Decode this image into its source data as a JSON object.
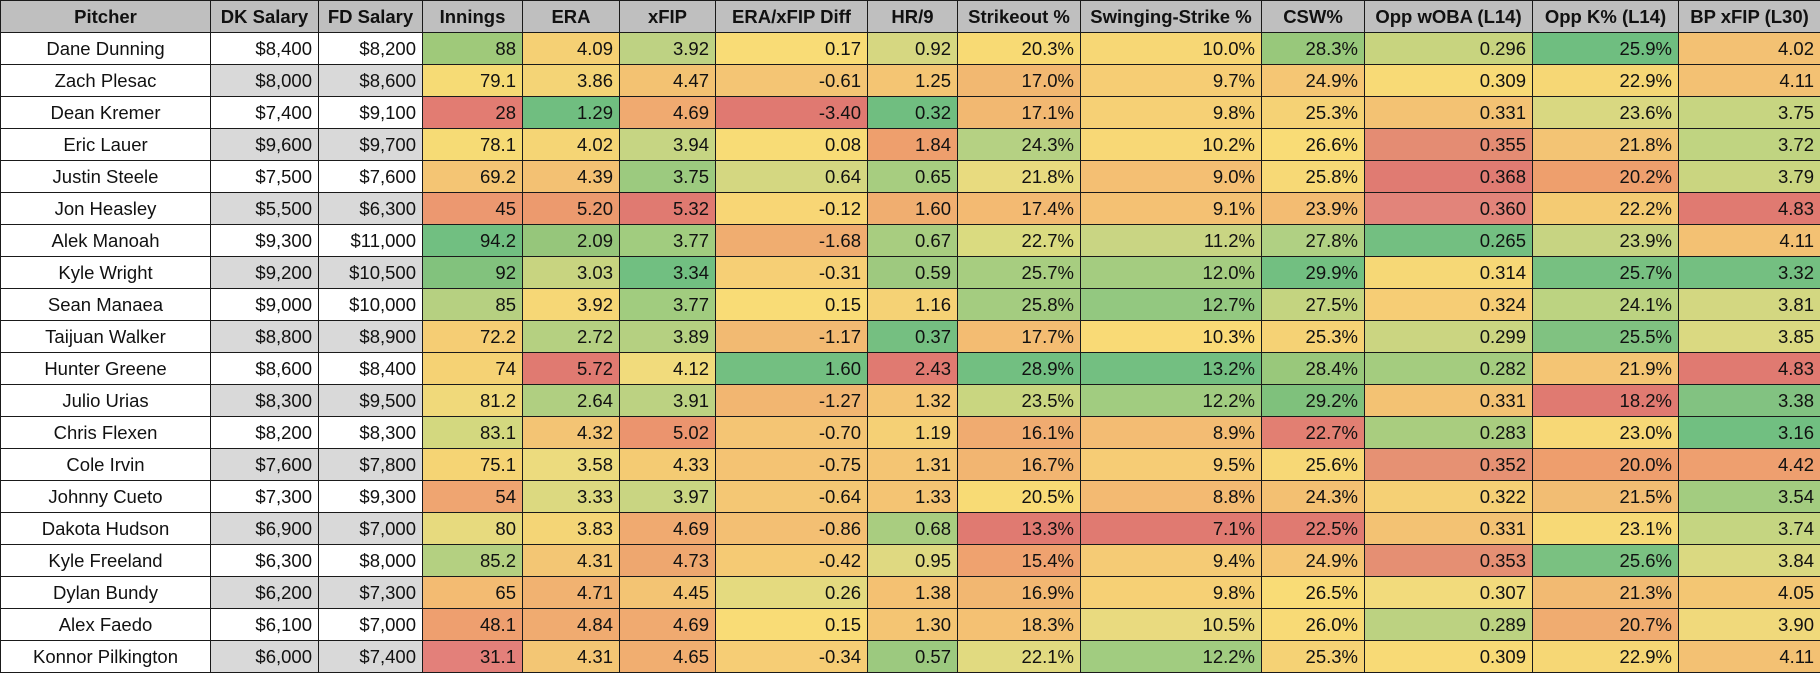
{
  "columns": [
    {
      "key": "pitcher",
      "label": "Pitcher",
      "width": 210
    },
    {
      "key": "dk",
      "label": "DK Salary",
      "width": 108
    },
    {
      "key": "fd",
      "label": "FD Salary",
      "width": 104
    },
    {
      "key": "innings",
      "label": "Innings",
      "width": 100
    },
    {
      "key": "era",
      "label": "ERA",
      "width": 97
    },
    {
      "key": "xfip",
      "label": "xFIP",
      "width": 96
    },
    {
      "key": "diff",
      "label": "ERA/xFIP Diff",
      "width": 152
    },
    {
      "key": "hr9",
      "label": "HR/9",
      "width": 90
    },
    {
      "key": "kpct",
      "label": "Strikeout %",
      "width": 123
    },
    {
      "key": "swstr",
      "label": "Swinging-Strike %",
      "width": 181
    },
    {
      "key": "csw",
      "label": "CSW%",
      "width": 103
    },
    {
      "key": "woba",
      "label": "Opp wOBA (L14)",
      "width": 168
    },
    {
      "key": "oppk",
      "label": "Opp K% (L14)",
      "width": 146
    },
    {
      "key": "bpxfip",
      "label": "BP xFIP (L30)",
      "width": 142
    }
  ],
  "rows": [
    {
      "pitcher": "Dane Dunning",
      "dk": "$8,400",
      "fd": "$8,200",
      "innings": "88",
      "era": "4.09",
      "xfip": "3.92",
      "diff": "0.17",
      "hr9": "0.92",
      "kpct": "20.3%",
      "swstr": "10.0%",
      "csw": "28.3%",
      "woba": "0.296",
      "oppk": "25.9%",
      "bpxfip": "4.02",
      "colors": {
        "innings": "#9fc97a",
        "era": "#f5d074",
        "xfip": "#bed283",
        "diff": "#f9dc76",
        "hr9": "#d6d781",
        "kpct": "#f8da74",
        "swstr": "#f7d775",
        "csw": "#98c87b",
        "woba": "#c8d47f",
        "oppk": "#6fbe80",
        "bpxfip": "#f3c173"
      }
    },
    {
      "pitcher": "Zach Plesac",
      "dk": "$8,000",
      "fd": "$8,600",
      "innings": "79.1",
      "era": "3.86",
      "xfip": "4.47",
      "diff": "-0.61",
      "hr9": "1.25",
      "kpct": "17.0%",
      "swstr": "9.7%",
      "csw": "24.9%",
      "woba": "0.309",
      "oppk": "22.9%",
      "bpxfip": "4.11",
      "colors": {
        "innings": "#f6db75",
        "era": "#f4d476",
        "xfip": "#f3c272",
        "diff": "#f4c574",
        "hr9": "#f4c573",
        "kpct": "#f2b871",
        "swstr": "#f6cd74",
        "csw": "#f5c674",
        "woba": "#f8da76",
        "oppk": "#f6d775",
        "bpxfip": "#f3c173"
      }
    },
    {
      "pitcher": "Dean Kremer",
      "dk": "$7,400",
      "fd": "$9,100",
      "innings": "28",
      "era": "1.29",
      "xfip": "4.69",
      "diff": "-3.40",
      "hr9": "0.32",
      "kpct": "17.1%",
      "swstr": "9.8%",
      "csw": "25.3%",
      "woba": "0.331",
      "oppk": "23.6%",
      "bpxfip": "3.75",
      "colors": {
        "innings": "#e27c72",
        "era": "#70be80",
        "xfip": "#f0aa70",
        "diff": "#e07971",
        "hr9": "#70be80",
        "kpct": "#f2b871",
        "swstr": "#f6d075",
        "csw": "#f5d275",
        "woba": "#f3c273",
        "oppk": "#d9d881",
        "bpxfip": "#c7d581"
      }
    },
    {
      "pitcher": "Eric Lauer",
      "dk": "$9,600",
      "fd": "$9,700",
      "innings": "78.1",
      "era": "4.02",
      "xfip": "3.94",
      "diff": "0.08",
      "hr9": "1.84",
      "kpct": "24.3%",
      "swstr": "10.2%",
      "csw": "26.6%",
      "woba": "0.355",
      "oppk": "21.8%",
      "bpxfip": "3.72",
      "colors": {
        "innings": "#f6db75",
        "era": "#f5d575",
        "xfip": "#c6d583",
        "diff": "#f8dc76",
        "hr9": "#ee9f6d",
        "kpct": "#b5d183",
        "swstr": "#f8d876",
        "csw": "#f9dc76",
        "woba": "#e48c73",
        "oppk": "#f3c474",
        "bpxfip": "#c0d481"
      }
    },
    {
      "pitcher": "Justin Steele",
      "dk": "$7,500",
      "fd": "$7,600",
      "innings": "69.2",
      "era": "4.39",
      "xfip": "3.75",
      "diff": "0.64",
      "hr9": "0.65",
      "kpct": "21.8%",
      "swstr": "9.0%",
      "csw": "25.8%",
      "woba": "0.368",
      "oppk": "20.2%",
      "bpxfip": "3.79",
      "colors": {
        "innings": "#f4c574",
        "era": "#f3c173",
        "xfip": "#9cca7f",
        "diff": "#d4d781",
        "hr9": "#a7cd80",
        "kpct": "#e8db7f",
        "swstr": "#f4bf73",
        "csw": "#f7d976",
        "woba": "#e07b72",
        "oppk": "#ee9f6d",
        "bpxfip": "#cad580"
      }
    },
    {
      "pitcher": "Jon Heasley",
      "dk": "$5,500",
      "fd": "$6,300",
      "innings": "45",
      "era": "5.20",
      "xfip": "5.32",
      "diff": "-0.12",
      "hr9": "1.60",
      "kpct": "17.4%",
      "swstr": "9.1%",
      "csw": "23.9%",
      "woba": "0.360",
      "oppk": "22.2%",
      "bpxfip": "4.83",
      "colors": {
        "innings": "#ec9870",
        "era": "#ec9a6e",
        "xfip": "#e07a71",
        "diff": "#f8d675",
        "hr9": "#f0ae70",
        "kpct": "#f3ba72",
        "swstr": "#f4c173",
        "csw": "#f3bc72",
        "woba": "#e2847a",
        "oppk": "#f4cb73",
        "bpxfip": "#e07a71"
      }
    },
    {
      "pitcher": "Alek Manoah",
      "dk": "$9,300",
      "fd": "$11,000",
      "innings": "94.2",
      "era": "2.09",
      "xfip": "3.77",
      "diff": "-1.68",
      "hr9": "0.67",
      "kpct": "22.7%",
      "swstr": "11.2%",
      "csw": "27.8%",
      "woba": "0.265",
      "oppk": "23.9%",
      "bpxfip": "4.11",
      "colors": {
        "innings": "#71bf81",
        "era": "#96c67b",
        "xfip": "#a1cc7f",
        "diff": "#f0ad70",
        "hr9": "#a8cd80",
        "kpct": "#dadb80",
        "swstr": "#c9d583",
        "csw": "#b0d083",
        "woba": "#73bf81",
        "oppk": "#c7d482",
        "bpxfip": "#f3c173"
      }
    },
    {
      "pitcher": "Kyle Wright",
      "dk": "$9,200",
      "fd": "$10,500",
      "innings": "92",
      "era": "3.03",
      "xfip": "3.34",
      "diff": "-0.31",
      "hr9": "0.59",
      "kpct": "25.7%",
      "swstr": "12.0%",
      "csw": "29.9%",
      "woba": "0.314",
      "oppk": "25.7%",
      "bpxfip": "3.32",
      "colors": {
        "innings": "#82c27d",
        "era": "#c8d480",
        "xfip": "#71bf81",
        "diff": "#f6cf75",
        "hr9": "#9ec97f",
        "kpct": "#a7cd80",
        "swstr": "#a4cc80",
        "csw": "#72bf81",
        "woba": "#f6d876",
        "oppk": "#77c081",
        "bpxfip": "#74bf81"
      }
    },
    {
      "pitcher": "Sean Manaea",
      "dk": "$9,000",
      "fd": "$10,000",
      "innings": "85",
      "era": "3.92",
      "xfip": "3.77",
      "diff": "0.15",
      "hr9": "1.16",
      "kpct": "25.8%",
      "swstr": "12.7%",
      "csw": "27.5%",
      "woba": "0.324",
      "oppk": "24.1%",
      "bpxfip": "3.81",
      "colors": {
        "innings": "#b6d081",
        "era": "#f6d776",
        "xfip": "#a1cc7f",
        "diff": "#f9dc76",
        "hr9": "#f5d275",
        "kpct": "#a4cc80",
        "swstr": "#93c880",
        "csw": "#c4d480",
        "woba": "#f6cd75",
        "oppk": "#bcd381",
        "bpxfip": "#d3d781"
      }
    },
    {
      "pitcher": "Taijuan Walker",
      "dk": "$8,800",
      "fd": "$8,900",
      "innings": "72.2",
      "era": "2.72",
      "xfip": "3.89",
      "diff": "-1.17",
      "hr9": "0.37",
      "kpct": "17.7%",
      "swstr": "10.3%",
      "csw": "25.3%",
      "woba": "0.299",
      "oppk": "25.5%",
      "bpxfip": "3.85",
      "colors": {
        "innings": "#f5cd74",
        "era": "#b5d081",
        "xfip": "#b5d081",
        "diff": "#f2ba72",
        "hr9": "#75bf81",
        "kpct": "#f3bc72",
        "swstr": "#f9da76",
        "csw": "#f5d275",
        "woba": "#cbd581",
        "oppk": "#80c281",
        "bpxfip": "#dad981"
      }
    },
    {
      "pitcher": "Hunter Greene",
      "dk": "$8,600",
      "fd": "$8,400",
      "innings": "74",
      "era": "5.72",
      "xfip": "4.12",
      "diff": "1.60",
      "hr9": "2.43",
      "kpct": "28.9%",
      "swstr": "13.2%",
      "csw": "28.4%",
      "woba": "0.282",
      "oppk": "21.9%",
      "bpxfip": "4.83",
      "colors": {
        "innings": "#f5d274",
        "era": "#e07a71",
        "xfip": "#f1db7c",
        "diff": "#73bf81",
        "hr9": "#e07a71",
        "kpct": "#72bf81",
        "swstr": "#73bf81",
        "csw": "#99c87b",
        "woba": "#a4cc7f",
        "oppk": "#f4c574",
        "bpxfip": "#e07a71"
      }
    },
    {
      "pitcher": "Julio Urias",
      "dk": "$8,300",
      "fd": "$9,500",
      "innings": "81.2",
      "era": "2.64",
      "xfip": "3.91",
      "diff": "-1.27",
      "hr9": "1.32",
      "kpct": "23.5%",
      "swstr": "12.2%",
      "csw": "29.2%",
      "woba": "0.331",
      "oppk": "18.2%",
      "bpxfip": "3.38",
      "colors": {
        "innings": "#f0d97a",
        "era": "#b0cf81",
        "xfip": "#bcd282",
        "diff": "#f2b671",
        "hr9": "#f4c573",
        "kpct": "#c9d680",
        "swstr": "#a1cc80",
        "csw": "#7fc17c",
        "woba": "#f3c273",
        "oppk": "#e07a71",
        "bpxfip": "#82c281"
      }
    },
    {
      "pitcher": "Chris Flexen",
      "dk": "$8,200",
      "fd": "$8,300",
      "innings": "83.1",
      "era": "4.32",
      "xfip": "5.02",
      "diff": "-0.70",
      "hr9": "1.19",
      "kpct": "16.1%",
      "swstr": "8.9%",
      "csw": "22.7%",
      "woba": "0.283",
      "oppk": "23.0%",
      "bpxfip": "3.16",
      "colors": {
        "innings": "#d3d87f",
        "era": "#f3c474",
        "xfip": "#eb946e",
        "diff": "#f4c574",
        "hr9": "#f5d075",
        "kpct": "#f0ab70",
        "swstr": "#f3bc73",
        "csw": "#e27f72",
        "woba": "#a9cd7f",
        "oppk": "#f7d876",
        "bpxfip": "#71bf81"
      }
    },
    {
      "pitcher": "Cole Irvin",
      "dk": "$7,600",
      "fd": "$7,800",
      "innings": "75.1",
      "era": "3.58",
      "xfip": "4.33",
      "diff": "-0.75",
      "hr9": "1.31",
      "kpct": "16.7%",
      "swstr": "9.5%",
      "csw": "25.6%",
      "woba": "0.352",
      "oppk": "20.0%",
      "bpxfip": "4.42",
      "colors": {
        "innings": "#f5d474",
        "era": "#ecdb7e",
        "xfip": "#f4cb73",
        "diff": "#f4c373",
        "hr9": "#f4c573",
        "kpct": "#f2b571",
        "swstr": "#f6cc75",
        "csw": "#f7d876",
        "woba": "#e69173",
        "oppk": "#ee9e6d",
        "bpxfip": "#ee9f6f"
      }
    },
    {
      "pitcher": "Johnny Cueto",
      "dk": "$7,300",
      "fd": "$9,300",
      "innings": "54",
      "era": "3.33",
      "xfip": "3.97",
      "diff": "-0.64",
      "hr9": "1.33",
      "kpct": "20.5%",
      "swstr": "8.8%",
      "csw": "24.3%",
      "woba": "0.322",
      "oppk": "21.5%",
      "bpxfip": "3.54",
      "colors": {
        "innings": "#efa571",
        "era": "#dcd980",
        "xfip": "#c9d582",
        "diff": "#f4c774",
        "hr9": "#f4c473",
        "kpct": "#f8db75",
        "swstr": "#f3ba72",
        "csw": "#f3c072",
        "woba": "#f5d075",
        "oppk": "#f2bd73",
        "bpxfip": "#a3cc80"
      }
    },
    {
      "pitcher": "Dakota Hudson",
      "dk": "$6,900",
      "fd": "$7,000",
      "innings": "80",
      "era": "3.83",
      "xfip": "4.69",
      "diff": "-0.86",
      "hr9": "0.68",
      "kpct": "13.3%",
      "swstr": "7.1%",
      "csw": "22.5%",
      "woba": "0.331",
      "oppk": "23.1%",
      "bpxfip": "3.74",
      "colors": {
        "innings": "#e7da7e",
        "era": "#f4d576",
        "xfip": "#f0aa70",
        "diff": "#f3bf73",
        "hr9": "#a9cd80",
        "kpct": "#e07a71",
        "swstr": "#e07a71",
        "csw": "#e07a71",
        "woba": "#f3c273",
        "oppk": "#f7d976",
        "bpxfip": "#c5d581"
      }
    },
    {
      "pitcher": "Kyle Freeland",
      "dk": "$6,300",
      "fd": "$8,000",
      "innings": "85.2",
      "era": "4.31",
      "xfip": "4.73",
      "diff": "-0.42",
      "hr9": "0.95",
      "kpct": "15.4%",
      "swstr": "9.4%",
      "csw": "24.9%",
      "woba": "0.353",
      "oppk": "25.6%",
      "bpxfip": "3.84",
      "colors": {
        "innings": "#b4d081",
        "era": "#f3c674",
        "xfip": "#eea76f",
        "diff": "#f5ca74",
        "hr9": "#dfd981",
        "kpct": "#efa26f",
        "swstr": "#f5cb75",
        "csw": "#f5c674",
        "woba": "#e58f73",
        "oppk": "#7ac181",
        "bpxfip": "#dad981"
      }
    },
    {
      "pitcher": "Dylan Bundy",
      "dk": "$6,200",
      "fd": "$7,300",
      "innings": "65",
      "era": "4.71",
      "xfip": "4.45",
      "diff": "0.26",
      "hr9": "1.38",
      "kpct": "16.9%",
      "swstr": "9.8%",
      "csw": "26.5%",
      "woba": "0.307",
      "oppk": "21.3%",
      "bpxfip": "4.05",
      "colors": {
        "innings": "#f3bb72",
        "era": "#f1b271",
        "xfip": "#f3c473",
        "diff": "#e4da7f",
        "hr9": "#f4c172",
        "kpct": "#f2b771",
        "swstr": "#f6d075",
        "csw": "#f9dc76",
        "woba": "#f2db7c",
        "oppk": "#f2ba72",
        "bpxfip": "#f3c673"
      }
    },
    {
      "pitcher": "Alex Faedo",
      "dk": "$6,100",
      "fd": "$7,000",
      "innings": "48.1",
      "era": "4.84",
      "xfip": "4.69",
      "diff": "0.15",
      "hr9": "1.30",
      "kpct": "18.3%",
      "swstr": "10.5%",
      "csw": "26.0%",
      "woba": "0.289",
      "oppk": "20.7%",
      "bpxfip": "3.90",
      "colors": {
        "innings": "#ee9f6f",
        "era": "#f0ab70",
        "xfip": "#f0aa70",
        "diff": "#f9dc76",
        "hr9": "#f4c573",
        "kpct": "#f4c173",
        "swstr": "#e9da7f",
        "csw": "#f8da76",
        "woba": "#bcd281",
        "oppk": "#f0ac70",
        "bpxfip": "#f0d97b"
      }
    },
    {
      "pitcher": "Konnor Pilkington",
      "dk": "$6,000",
      "fd": "$7,400",
      "innings": "31.1",
      "era": "4.31",
      "xfip": "4.65",
      "diff": "-0.34",
      "hr9": "0.57",
      "kpct": "22.1%",
      "swstr": "12.2%",
      "csw": "25.3%",
      "woba": "0.309",
      "oppk": "22.9%",
      "bpxfip": "4.11",
      "colors": {
        "innings": "#e3807a",
        "era": "#f3c674",
        "xfip": "#f1ae70",
        "diff": "#f6cd75",
        "hr9": "#9cc97f",
        "kpct": "#e1da80",
        "swstr": "#a1cc80",
        "csw": "#f5d275",
        "woba": "#f8da76",
        "oppk": "#f6d775",
        "bpxfip": "#f3c173"
      }
    }
  ]
}
